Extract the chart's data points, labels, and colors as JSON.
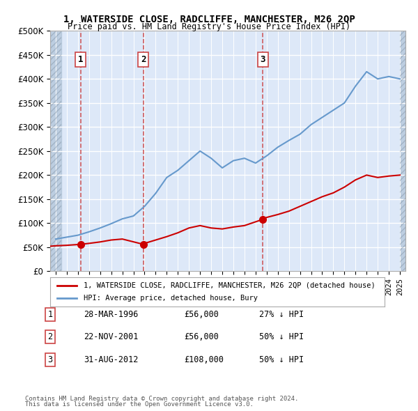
{
  "title": "1, WATERSIDE CLOSE, RADCLIFFE, MANCHESTER, M26 2QP",
  "subtitle": "Price paid vs. HM Land Registry's House Price Index (HPI)",
  "legend_property": "1, WATERSIDE CLOSE, RADCLIFFE, MANCHESTER, M26 2QP (detached house)",
  "legend_hpi": "HPI: Average price, detached house, Bury",
  "footer1": "Contains HM Land Registry data © Crown copyright and database right 2024.",
  "footer2": "This data is licensed under the Open Government Licence v3.0.",
  "sales": [
    {
      "num": 1,
      "date": "28-MAR-1996",
      "price": 56000,
      "pct": "27% ↓ HPI",
      "year": 1996.24
    },
    {
      "num": 2,
      "date": "22-NOV-2001",
      "price": 56000,
      "pct": "50% ↓ HPI",
      "year": 2001.9
    },
    {
      "num": 3,
      "date": "31-AUG-2012",
      "price": 108000,
      "pct": "50% ↓ HPI",
      "year": 2012.66
    }
  ],
  "ylim": [
    0,
    500000
  ],
  "xlim_left": 1993.5,
  "xlim_right": 2025.5,
  "hatch_left_end": 1994.5,
  "hatch_right_start": 2025.0,
  "bg_color": "#dde8f8",
  "hatch_color": "#b0c4d8",
  "grid_color": "#ffffff",
  "red_line_color": "#cc0000",
  "blue_line_color": "#6699cc",
  "sale_marker_color": "#cc0000",
  "dashed_line_color": "#cc4444",
  "hpi_years": [
    1994,
    1995,
    1996,
    1997,
    1998,
    1999,
    2000,
    2001,
    2002,
    2003,
    2004,
    2005,
    2006,
    2007,
    2008,
    2009,
    2010,
    2011,
    2012,
    2013,
    2014,
    2015,
    2016,
    2017,
    2018,
    2019,
    2020,
    2021,
    2022,
    2023,
    2024,
    2025
  ],
  "hpi_values": [
    67000,
    71000,
    75000,
    82000,
    90000,
    99000,
    109000,
    115000,
    135000,
    162000,
    195000,
    210000,
    230000,
    250000,
    235000,
    215000,
    230000,
    235000,
    225000,
    240000,
    258000,
    272000,
    285000,
    305000,
    320000,
    335000,
    350000,
    385000,
    415000,
    400000,
    405000,
    400000
  ],
  "red_years": [
    1993.5,
    1994,
    1995,
    1996.24,
    1997,
    1998,
    1999,
    2000,
    2001.9,
    2002,
    2003,
    2004,
    2005,
    2006,
    2007,
    2008,
    2009,
    2010,
    2011,
    2012.66,
    2013,
    2014,
    2015,
    2016,
    2017,
    2018,
    2019,
    2020,
    2021,
    2022,
    2023,
    2024,
    2025
  ],
  "red_values": [
    52000,
    53000,
    54000,
    56000,
    58000,
    61000,
    65000,
    67000,
    56000,
    58000,
    65000,
    72000,
    80000,
    90000,
    95000,
    90000,
    88000,
    92000,
    95000,
    108000,
    112000,
    118000,
    125000,
    135000,
    145000,
    155000,
    163000,
    175000,
    190000,
    200000,
    195000,
    198000,
    200000
  ]
}
